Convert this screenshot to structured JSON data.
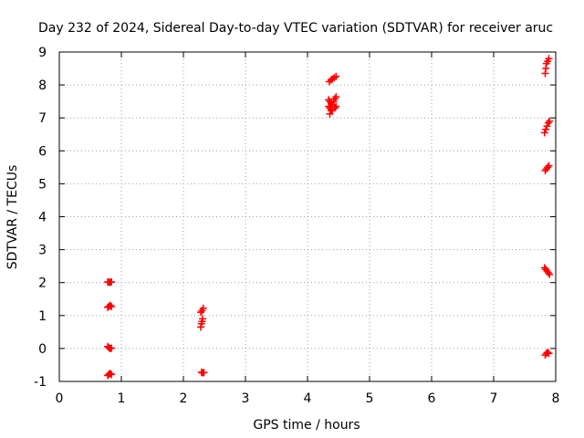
{
  "chart_data": {
    "type": "scatter",
    "title": "Day 232 of 2024, Sidereal Day-to-day VTEC variation (SDTVAR) for receiver aruc",
    "xlabel": "GPS time / hours",
    "ylabel": "SDTVAR / TECUs",
    "xlim": [
      0,
      8
    ],
    "ylim": [
      -1,
      9
    ],
    "x_ticks": [
      "0",
      "1",
      "2",
      "3",
      "4",
      "5",
      "6",
      "7",
      "8"
    ],
    "y_ticks": [
      "-1",
      "0",
      "1",
      "2",
      "3",
      "4",
      "5",
      "6",
      "7",
      "8",
      "9"
    ],
    "grid": true,
    "marker": "plus",
    "series": [
      {
        "name": "SDTVAR",
        "color": "#ff0000",
        "points": [
          [
            0.78,
            2.02
          ],
          [
            0.8,
            2.01
          ],
          [
            0.82,
            2.01
          ],
          [
            0.84,
            2.02
          ],
          [
            0.78,
            1.25
          ],
          [
            0.8,
            1.28
          ],
          [
            0.82,
            1.31
          ],
          [
            0.84,
            1.27
          ],
          [
            0.78,
            0.06
          ],
          [
            0.8,
            0.02
          ],
          [
            0.82,
            0.0
          ],
          [
            0.84,
            0.01
          ],
          [
            0.78,
            -0.82
          ],
          [
            0.8,
            -0.78
          ],
          [
            0.82,
            -0.76
          ],
          [
            0.84,
            -0.79
          ],
          [
            2.28,
            1.1
          ],
          [
            2.3,
            1.15
          ],
          [
            2.32,
            1.22
          ],
          [
            2.28,
            0.65
          ],
          [
            2.29,
            0.75
          ],
          [
            2.3,
            0.82
          ],
          [
            2.31,
            0.9
          ],
          [
            2.29,
            -0.72
          ],
          [
            2.31,
            -0.74
          ],
          [
            2.33,
            -0.73
          ],
          [
            4.35,
            8.1
          ],
          [
            4.38,
            8.15
          ],
          [
            4.4,
            8.18
          ],
          [
            4.43,
            8.22
          ],
          [
            4.46,
            8.26
          ],
          [
            4.34,
            7.55
          ],
          [
            4.36,
            7.5
          ],
          [
            4.38,
            7.45
          ],
          [
            4.4,
            7.4
          ],
          [
            4.42,
            7.5
          ],
          [
            4.44,
            7.58
          ],
          [
            4.46,
            7.64
          ],
          [
            4.34,
            7.35
          ],
          [
            4.36,
            7.3
          ],
          [
            4.38,
            7.22
          ],
          [
            4.36,
            7.12
          ],
          [
            4.4,
            7.25
          ],
          [
            4.44,
            7.3
          ],
          [
            4.46,
            7.35
          ],
          [
            7.83,
            8.35
          ],
          [
            7.84,
            8.5
          ],
          [
            7.85,
            8.65
          ],
          [
            7.87,
            8.72
          ],
          [
            7.89,
            8.8
          ],
          [
            7.82,
            6.55
          ],
          [
            7.84,
            6.65
          ],
          [
            7.86,
            6.75
          ],
          [
            7.88,
            6.85
          ],
          [
            7.9,
            6.9
          ],
          [
            7.83,
            5.4
          ],
          [
            7.85,
            5.45
          ],
          [
            7.87,
            5.5
          ],
          [
            7.89,
            5.55
          ],
          [
            7.82,
            2.45
          ],
          [
            7.84,
            2.4
          ],
          [
            7.86,
            2.35
          ],
          [
            7.88,
            2.3
          ],
          [
            7.9,
            2.25
          ],
          [
            7.83,
            -0.2
          ],
          [
            7.85,
            -0.15
          ],
          [
            7.87,
            -0.12
          ],
          [
            7.89,
            -0.15
          ]
        ]
      }
    ]
  }
}
